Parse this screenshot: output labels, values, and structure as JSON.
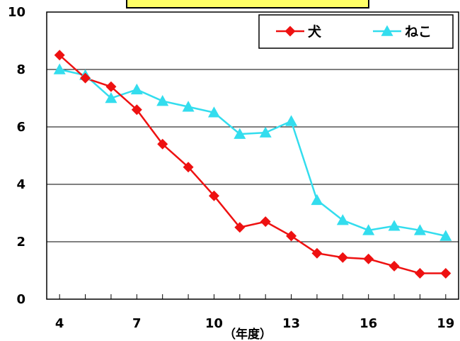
{
  "chart_data": {
    "type": "line",
    "x_ticks": [
      4,
      7,
      10,
      13,
      16,
      19
    ],
    "y_ticks": [
      0,
      2,
      4,
      6,
      8,
      10
    ],
    "ylim": [
      0,
      10
    ],
    "xlim": [
      3.5,
      19.5
    ],
    "xlabel": "（年度）",
    "grid": "horizontal",
    "legend_position": "top-right",
    "series": [
      {
        "name": "犬",
        "color": "#ee1111",
        "marker": "diamond",
        "x": [
          4,
          5,
          6,
          7,
          8,
          9,
          10,
          11,
          12,
          13,
          14,
          15,
          16,
          17,
          18,
          19
        ],
        "values": [
          8.5,
          7.7,
          7.4,
          6.6,
          5.4,
          4.6,
          3.6,
          2.5,
          2.7,
          2.2,
          1.6,
          1.45,
          1.4,
          1.15,
          0.9,
          0.9
        ]
      },
      {
        "name": "ねこ",
        "color": "#33ddee",
        "marker": "triangle",
        "x": [
          4,
          5,
          6,
          7,
          8,
          9,
          10,
          11,
          12,
          13,
          14,
          15,
          16,
          17,
          18,
          19
        ],
        "values": [
          8.0,
          7.8,
          7.0,
          7.3,
          6.9,
          6.7,
          6.5,
          5.75,
          5.8,
          6.2,
          3.45,
          2.75,
          2.4,
          2.55,
          2.4,
          2.2
        ]
      }
    ]
  }
}
